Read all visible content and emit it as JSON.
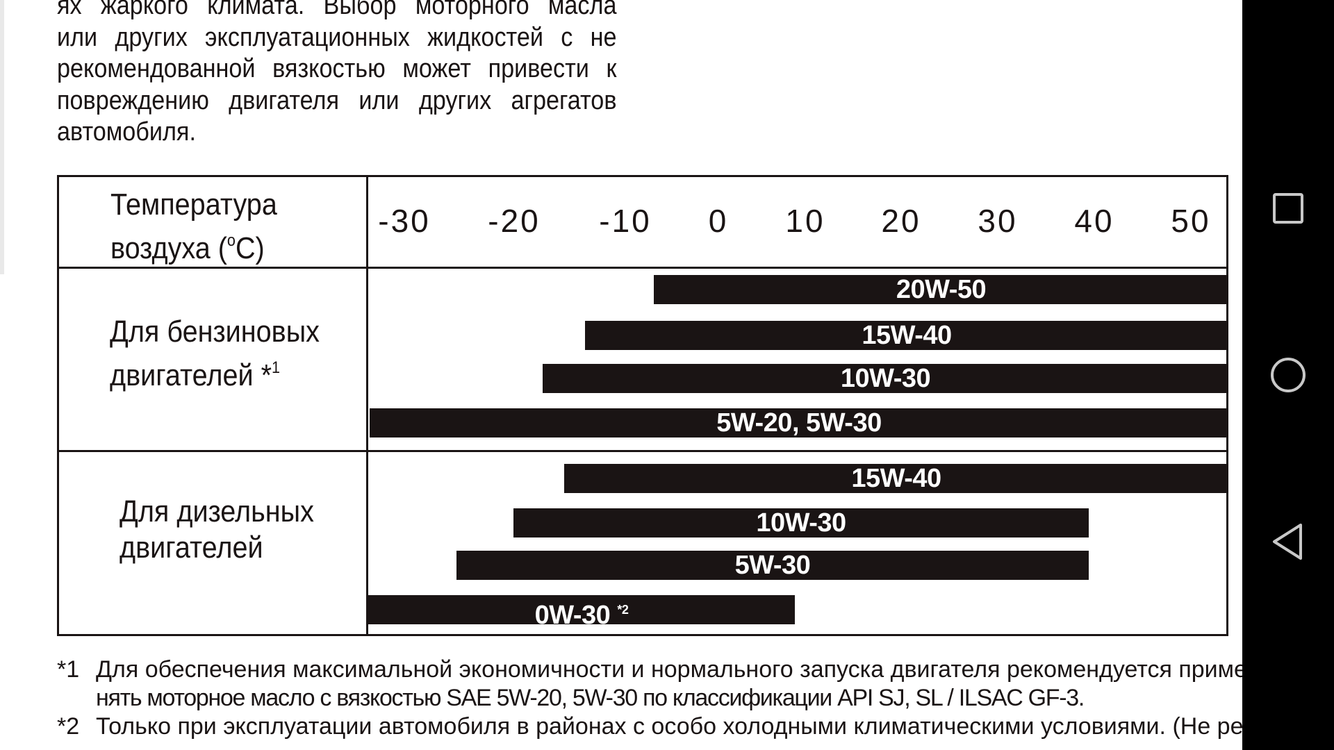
{
  "intro": {
    "lines": [
      "ях жаркого климата. Выбор моторного масла",
      "или других эксплуатационных жидкостей с не",
      "рекомендованной вязкостью может привести к",
      "повреждению двигателя или других агрегатов",
      "автомобиля."
    ]
  },
  "table": {
    "header_label_line1": "Температура",
    "header_label_pre": "воздуха (",
    "header_label_deg": "o",
    "header_label_post": "C)",
    "ticks": [
      "-30",
      "-20",
      "-10",
      "0",
      "10",
      "20",
      "30",
      "40",
      "50"
    ],
    "petrol_label_line1": "Для бензиновых",
    "petrol_label_line2": "двигателей *",
    "petrol_label_note": "1",
    "diesel_label_line1": "Для дизельных",
    "diesel_label_line2": "двигателей",
    "petrol_bars": [
      {
        "label": "20W-50",
        "from": -10,
        "to": 50
      },
      {
        "label": "15W-40",
        "from": -18,
        "to": 50
      },
      {
        "label": "10W-30",
        "from": -23,
        "to": 50
      },
      {
        "label": "5W-20, 5W-30",
        "from": -35,
        "to": 50
      }
    ],
    "diesel_bars": [
      {
        "label": "15W-40",
        "from": -20,
        "to": 50
      },
      {
        "label": "10W-30",
        "from": -26,
        "to": 36
      },
      {
        "label": "5W-30",
        "from": -33,
        "to": 36
      },
      {
        "label": "0W-30",
        "note": "*2",
        "from": -35,
        "to": 10
      }
    ]
  },
  "footnotes": [
    {
      "mark": "*1",
      "lines": [
        "Для обеспечения максимальной экономичности и нормального запуска двигателя рекомендуется приме-",
        "нять моторное масло с вязкостью SAE 5W-20, 5W-30 по классификации API SJ, SL / ILSAC GF-3."
      ]
    },
    {
      "mark": "*2",
      "lines": [
        "Только при эксплуатации автомобиля в районах с особо холодными климатическими условиями. (Не реко-"
      ]
    }
  ],
  "navbar": {
    "icons": [
      "recent-apps-icon",
      "home-icon",
      "back-icon"
    ]
  }
}
